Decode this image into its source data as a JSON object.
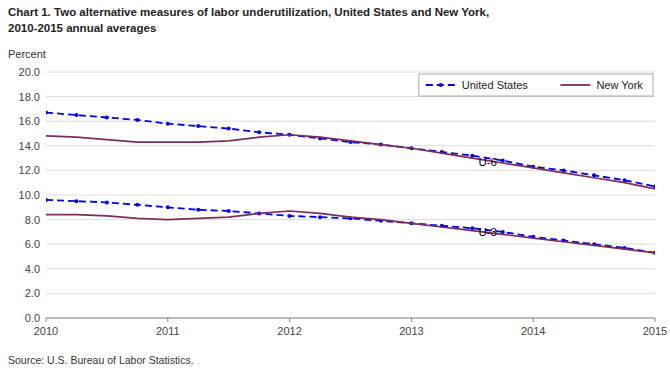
{
  "chart_data": {
    "type": "line",
    "title": "Chart 1. Two alternative measures of labor underutilization, United States and New York,",
    "subtitle": "2010-2015 annual averages",
    "y_label": "Percent",
    "source": "Source: U.S. Bureau of Labor Statistics.",
    "x": [
      2010,
      2010.25,
      2010.5,
      2010.75,
      2011,
      2011.25,
      2011.5,
      2011.75,
      2012,
      2012.25,
      2012.5,
      2012.75,
      2013,
      2013.25,
      2013.5,
      2013.75,
      2014,
      2014.25,
      2014.5,
      2014.75,
      2015
    ],
    "series": [
      {
        "name": "United States",
        "color": "#0000EE",
        "line_style": "dashed",
        "marker": "dot",
        "values": [
          16.7,
          16.5,
          16.3,
          16.1,
          15.8,
          15.6,
          15.4,
          15.1,
          14.9,
          14.6,
          14.3,
          14.1,
          13.8,
          13.5,
          13.2,
          12.8,
          12.3,
          12.0,
          11.6,
          11.2,
          10.7
        ]
      },
      {
        "name": "New York",
        "color": "#7B2D5A",
        "line_style": "solid",
        "marker": "none",
        "values": [
          14.8,
          14.7,
          14.5,
          14.3,
          14.3,
          14.3,
          14.4,
          14.7,
          14.9,
          14.7,
          14.4,
          14.1,
          13.8,
          13.4,
          13.0,
          12.6,
          12.2,
          11.8,
          11.4,
          11.0,
          10.5
        ]
      },
      {
        "name": "United States",
        "color": "#0000EE",
        "line_style": "dashed",
        "marker": "dot",
        "values": [
          9.6,
          9.5,
          9.4,
          9.2,
          9.0,
          8.8,
          8.7,
          8.5,
          8.3,
          8.2,
          8.1,
          7.9,
          7.7,
          7.5,
          7.3,
          7.0,
          6.6,
          6.3,
          6.0,
          5.7,
          5.3
        ]
      },
      {
        "name": "New York",
        "color": "#7B2D5A",
        "line_style": "solid",
        "marker": "none",
        "values": [
          8.4,
          8.4,
          8.3,
          8.1,
          8.0,
          8.1,
          8.2,
          8.5,
          8.7,
          8.5,
          8.2,
          8.0,
          7.7,
          7.4,
          7.1,
          6.8,
          6.5,
          6.2,
          5.9,
          5.6,
          5.3
        ]
      }
    ],
    "annotations": [
      {
        "text": "U-6",
        "x": 2013.55,
        "y": 12.65
      },
      {
        "text": "U-3",
        "x": 2013.55,
        "y": 7.0
      }
    ],
    "xlim": [
      2010,
      2015
    ],
    "xticks": [
      2010,
      2011,
      2012,
      2013,
      2014,
      2015
    ],
    "ylim": [
      0,
      20
    ],
    "yticks": [
      {
        "value": 0.0,
        "label": "0.0"
      },
      {
        "value": 2.0,
        "label": "2.0"
      },
      {
        "value": 4.0,
        "label": "4.0"
      },
      {
        "value": 6.0,
        "label": "6.0"
      },
      {
        "value": 8.0,
        "label": "8.0"
      },
      {
        "value": 10.0,
        "label": "10.0"
      },
      {
        "value": 12.0,
        "label": "12.0"
      },
      {
        "value": 14.0,
        "label": "14.0"
      },
      {
        "value": 16.0,
        "label": "16.0"
      },
      {
        "value": 18.0,
        "label": "18.0"
      },
      {
        "value": 20.0,
        "label": "20.0"
      }
    ],
    "grid": true,
    "legend": "upper right"
  }
}
